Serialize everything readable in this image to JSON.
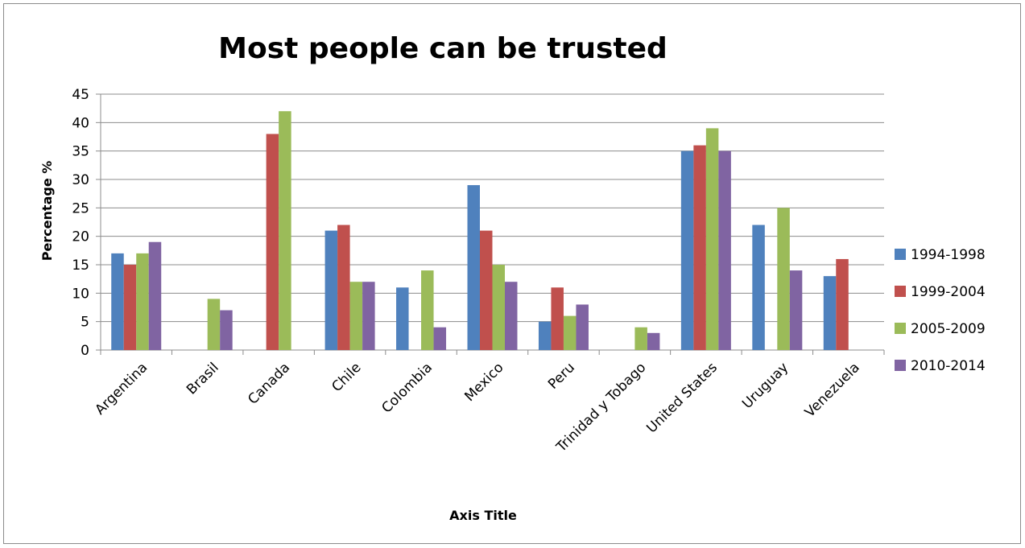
{
  "chart_data": {
    "type": "bar",
    "title": "Most people can be trusted",
    "xlabel": "Axis Title",
    "ylabel": "Percentage %",
    "ylim": [
      0,
      45
    ],
    "yticks": [
      0,
      5,
      10,
      15,
      20,
      25,
      30,
      35,
      40,
      45
    ],
    "grid": true,
    "legend_position": "right",
    "categories": [
      "Argentina",
      "Brasil",
      "Canada",
      "Chile",
      "Colombia",
      "Mexico",
      "Peru",
      "Trinidad y Tobago",
      "United States",
      "Uruguay",
      "Venezuela"
    ],
    "series": [
      {
        "name": "1994-1998",
        "color": "#4F81BD",
        "values": [
          17,
          null,
          null,
          21,
          11,
          29,
          5,
          null,
          35,
          22,
          13
        ]
      },
      {
        "name": "1999-2004",
        "color": "#C0504D",
        "values": [
          15,
          null,
          38,
          22,
          null,
          21,
          11,
          null,
          36,
          null,
          16
        ]
      },
      {
        "name": "2005-2009",
        "color": "#9BBB59",
        "values": [
          17,
          9,
          42,
          12,
          14,
          15,
          6,
          4,
          39,
          25,
          null
        ]
      },
      {
        "name": "2010-2014",
        "color": "#8064A2",
        "values": [
          19,
          7,
          null,
          12,
          4,
          12,
          8,
          3,
          35,
          14,
          null
        ]
      }
    ]
  }
}
